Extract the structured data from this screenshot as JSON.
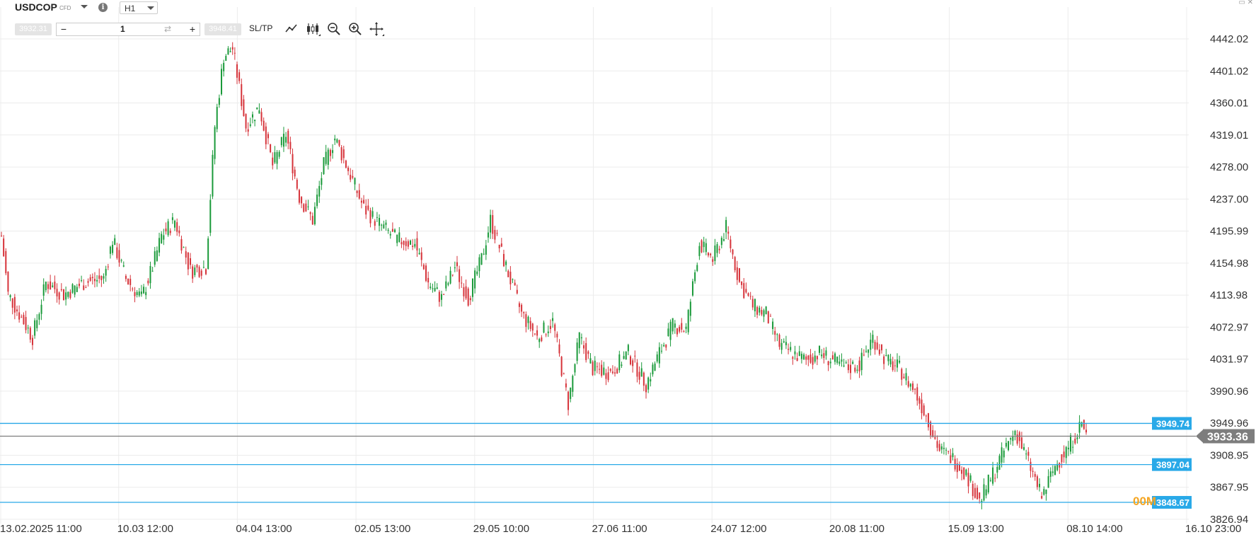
{
  "header": {
    "symbol": "USDCOP",
    "instrument_type": "CFD",
    "info_icon": "info-icon",
    "timeframe": "H1",
    "sell_price": "3932.31",
    "buy_price": "3948.41",
    "quantity_minus": "−",
    "quantity": "1",
    "quantity_plus": "+",
    "sltp_label": "SL/TP",
    "tools": [
      "line-chart-icon",
      "candlestick-icon",
      "zoom-out-icon",
      "zoom-in-icon",
      "crosshair-icon"
    ]
  },
  "window_controls": "▭ ✕",
  "watermark": "00M",
  "colors": {
    "up": "#1a9a3a",
    "down": "#d6333a",
    "level": "#29a9e8",
    "current": "#7d7d7d",
    "grid": "#ececec"
  },
  "chart_data": {
    "type": "candlestick",
    "symbol": "USDCOP",
    "timeframe": "H1",
    "x_tick_labels": [
      "13.02.2025 11:00",
      "10.03 12:00",
      "04.04 13:00",
      "02.05 13:00",
      "29.05 10:00",
      "27.06 11:00",
      "24.07 12:00",
      "20.08 11:00",
      "15.09 13:00",
      "08.10 14:00",
      "16.10 23:00"
    ],
    "y_tick_labels": [
      4442.02,
      4401.02,
      4360.01,
      4319.01,
      4278.0,
      4237.0,
      4195.99,
      4154.98,
      4113.98,
      4072.97,
      4031.97,
      3990.96,
      3949.96,
      3908.95,
      3867.95,
      3826.94
    ],
    "ylim": [
      3826.94,
      4442.02
    ],
    "current_price": {
      "label": "3933.36",
      "value": 3933.36
    },
    "levels": [
      {
        "label": "3949.74",
        "value": 3949.74
      },
      {
        "label": "3897.04",
        "value": 3897.04
      },
      {
        "label": "3848.67",
        "value": 3848.67
      }
    ],
    "anchors": [
      {
        "i": 0,
        "v": 4190
      },
      {
        "i": 3,
        "v": 4115
      },
      {
        "i": 8,
        "v": 4090
      },
      {
        "i": 14,
        "v": 4060
      },
      {
        "i": 20,
        "v": 4130
      },
      {
        "i": 28,
        "v": 4115
      },
      {
        "i": 37,
        "v": 4130
      },
      {
        "i": 46,
        "v": 4135
      },
      {
        "i": 50,
        "v": 4185
      },
      {
        "i": 56,
        "v": 4135
      },
      {
        "i": 63,
        "v": 4110
      },
      {
        "i": 68,
        "v": 4150
      },
      {
        "i": 72,
        "v": 4190
      },
      {
        "i": 78,
        "v": 4210
      },
      {
        "i": 85,
        "v": 4145
      },
      {
        "i": 92,
        "v": 4150
      },
      {
        "i": 96,
        "v": 4330
      },
      {
        "i": 100,
        "v": 4420
      },
      {
        "i": 104,
        "v": 4430
      },
      {
        "i": 110,
        "v": 4330
      },
      {
        "i": 116,
        "v": 4355
      },
      {
        "i": 122,
        "v": 4280
      },
      {
        "i": 128,
        "v": 4320
      },
      {
        "i": 134,
        "v": 4240
      },
      {
        "i": 140,
        "v": 4210
      },
      {
        "i": 145,
        "v": 4280
      },
      {
        "i": 150,
        "v": 4315
      },
      {
        "i": 156,
        "v": 4275
      },
      {
        "i": 163,
        "v": 4225
      },
      {
        "i": 170,
        "v": 4205
      },
      {
        "i": 178,
        "v": 4185
      },
      {
        "i": 186,
        "v": 4180
      },
      {
        "i": 192,
        "v": 4130
      },
      {
        "i": 198,
        "v": 4110
      },
      {
        "i": 204,
        "v": 4150
      },
      {
        "i": 210,
        "v": 4110
      },
      {
        "i": 216,
        "v": 4160
      },
      {
        "i": 220,
        "v": 4210
      },
      {
        "i": 227,
        "v": 4150
      },
      {
        "i": 234,
        "v": 4090
      },
      {
        "i": 241,
        "v": 4060
      },
      {
        "i": 248,
        "v": 4080
      },
      {
        "i": 255,
        "v": 3975
      },
      {
        "i": 260,
        "v": 4060
      },
      {
        "i": 266,
        "v": 4020
      },
      {
        "i": 274,
        "v": 4015
      },
      {
        "i": 282,
        "v": 4040
      },
      {
        "i": 290,
        "v": 4000
      },
      {
        "i": 296,
        "v": 4040
      },
      {
        "i": 302,
        "v": 4075
      },
      {
        "i": 308,
        "v": 4070
      },
      {
        "i": 314,
        "v": 4180
      },
      {
        "i": 320,
        "v": 4160
      },
      {
        "i": 326,
        "v": 4200
      },
      {
        "i": 332,
        "v": 4130
      },
      {
        "i": 338,
        "v": 4100
      },
      {
        "i": 344,
        "v": 4090
      },
      {
        "i": 350,
        "v": 4050
      },
      {
        "i": 356,
        "v": 4040
      },
      {
        "i": 362,
        "v": 4030
      },
      {
        "i": 368,
        "v": 4040
      },
      {
        "i": 374,
        "v": 4030
      },
      {
        "i": 380,
        "v": 4020
      },
      {
        "i": 386,
        "v": 4025
      },
      {
        "i": 392,
        "v": 4060
      },
      {
        "i": 398,
        "v": 4030
      },
      {
        "i": 404,
        "v": 4020
      },
      {
        "i": 410,
        "v": 3995
      },
      {
        "i": 416,
        "v": 3960
      },
      {
        "i": 422,
        "v": 3915
      },
      {
        "i": 428,
        "v": 3905
      },
      {
        "i": 434,
        "v": 3885
      },
      {
        "i": 440,
        "v": 3850
      },
      {
        "i": 446,
        "v": 3885
      },
      {
        "i": 452,
        "v": 3920
      },
      {
        "i": 456,
        "v": 3940
      },
      {
        "i": 462,
        "v": 3900
      },
      {
        "i": 468,
        "v": 3855
      },
      {
        "i": 474,
        "v": 3895
      },
      {
        "i": 480,
        "v": 3920
      },
      {
        "i": 486,
        "v": 3950
      },
      {
        "i": 488,
        "v": 3935
      }
    ]
  }
}
